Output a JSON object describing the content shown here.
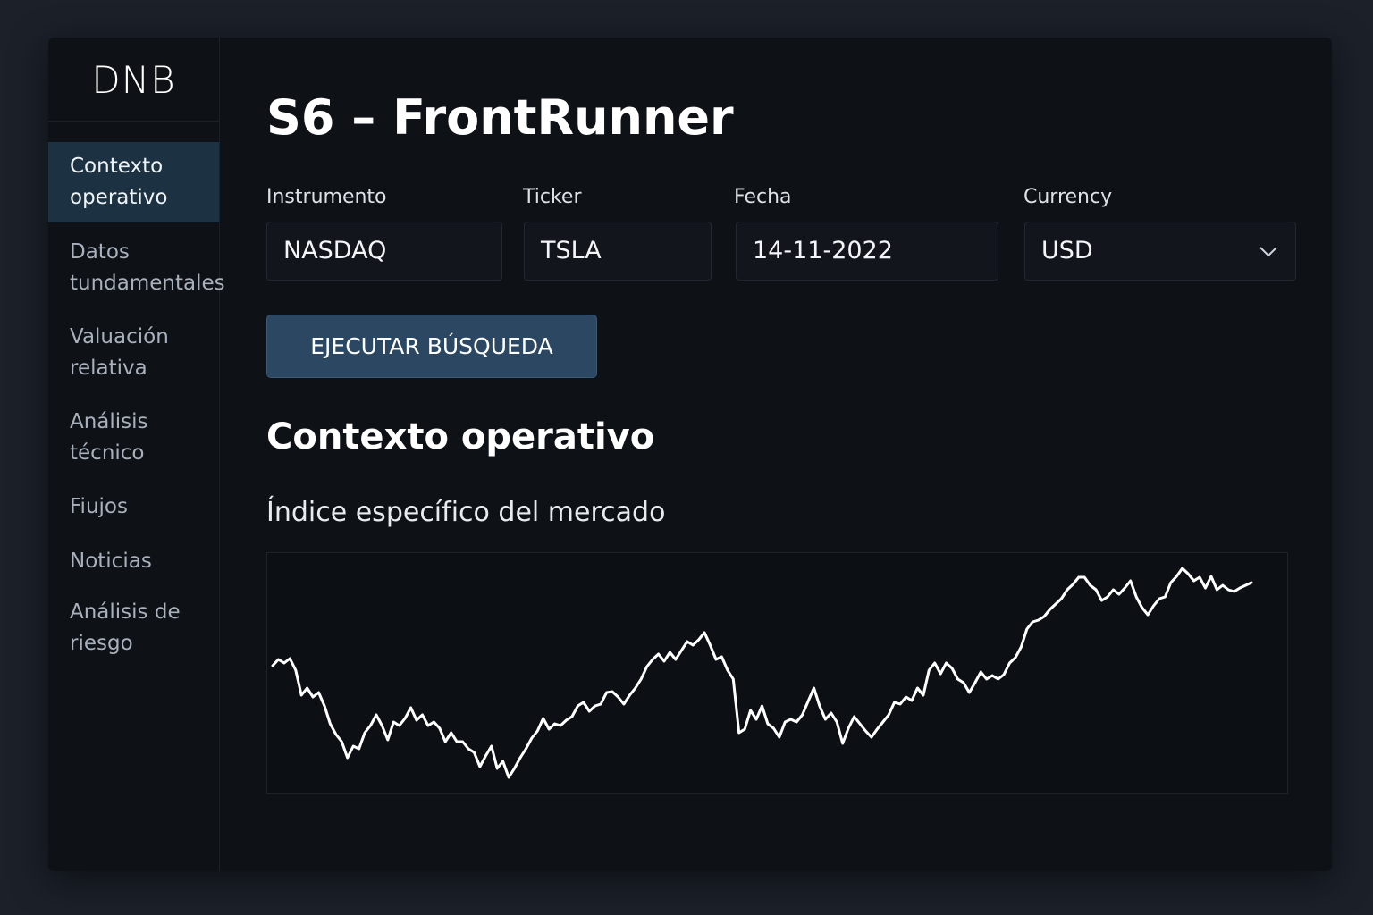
{
  "logo": "DNB",
  "sidebar": {
    "items": [
      "Contexto operativo",
      "Datos tundamentales",
      "Valuación relativa",
      "Análisis técnico",
      "Fiujos",
      "Noticias",
      "Análisis de riesgo"
    ]
  },
  "header": {
    "title": "S6 – FrontRunner"
  },
  "form": {
    "fields": [
      {
        "label": "Instrumento",
        "value": "NASDAQ"
      },
      {
        "label": "Ticker",
        "value": "TSLA"
      },
      {
        "label": "Fecha",
        "value": "14-11-2022"
      },
      {
        "label": "Currency",
        "value": "USD"
      }
    ],
    "button": "EJECUTAR BÚSQUEDA"
  },
  "section": {
    "title": "Contexto operativo"
  },
  "chart_data": {
    "type": "line",
    "title": "Índice específico del mercado",
    "color": "#ffffff",
    "ylim": [
      0,
      270
    ],
    "values": [
      143,
      150,
      146,
      151,
      138,
      110,
      118,
      108,
      113,
      98,
      78,
      66,
      58,
      40,
      53,
      50,
      68,
      76,
      88,
      76,
      60,
      80,
      76,
      84,
      96,
      82,
      88,
      76,
      80,
      73,
      58,
      68,
      58,
      58,
      50,
      46,
      30,
      42,
      53,
      28,
      36,
      18,
      28,
      40,
      50,
      62,
      70,
      84,
      72,
      78,
      76,
      82,
      86,
      98,
      102,
      92,
      98,
      100,
      113,
      114,
      108,
      100,
      110,
      118,
      128,
      142,
      150,
      156,
      148,
      158,
      150,
      160,
      170,
      166,
      172,
      180,
      166,
      150,
      153,
      138,
      128,
      68,
      72,
      93,
      83,
      98,
      78,
      73,
      63,
      80,
      83,
      80,
      88,
      103,
      118,
      98,
      83,
      90,
      80,
      56,
      73,
      86,
      78,
      70,
      63,
      72,
      80,
      88,
      102,
      100,
      108,
      104,
      118,
      110,
      138,
      146,
      134,
      146,
      140,
      128,
      124,
      113,
      124,
      136,
      128,
      132,
      128,
      133,
      146,
      152,
      164,
      184,
      192,
      194,
      198,
      206,
      212,
      218,
      228,
      234,
      242,
      242,
      233,
      228,
      216,
      220,
      228,
      223,
      230,
      238,
      220,
      208,
      200,
      210,
      218,
      220,
      236,
      243,
      252,
      246,
      238,
      242,
      230,
      243,
      228,
      233,
      228,
      226,
      230,
      233,
      236
    ]
  }
}
